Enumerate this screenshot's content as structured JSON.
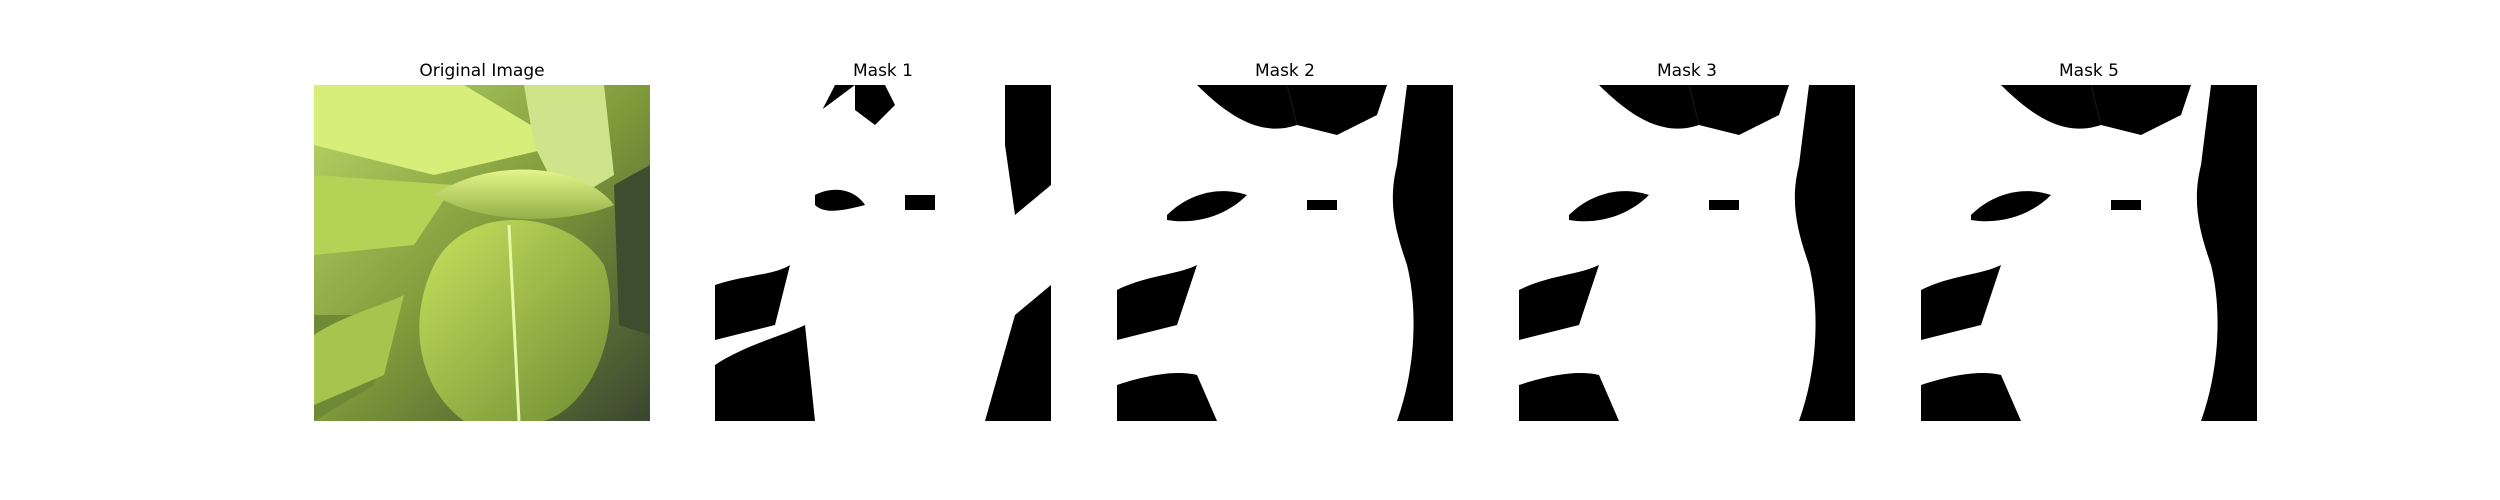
{
  "panels": [
    {
      "title": "Original Image",
      "kind": "photo"
    },
    {
      "title": "Mask 1",
      "kind": "mask"
    },
    {
      "title": "Mask 2",
      "kind": "mask"
    },
    {
      "title": "Mask 3",
      "kind": "mask"
    },
    {
      "title": "Mask 5",
      "kind": "mask"
    }
  ],
  "colors": {
    "mask_foreground": "#ffffff",
    "mask_background": "#000000",
    "leaf_light": "#c8e85a",
    "leaf_mid": "#9fc24a",
    "leaf_dark": "#5d7a2a",
    "shadow": "#2f3a2a"
  }
}
